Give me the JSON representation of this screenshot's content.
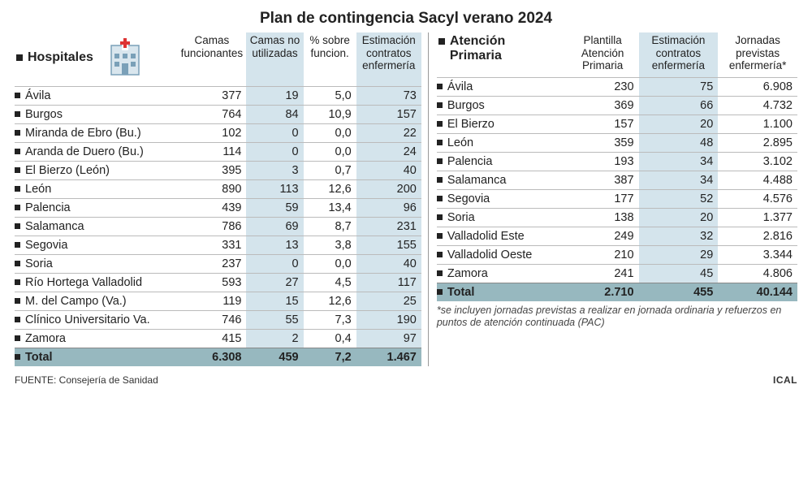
{
  "title": "Plan de contingencia Sacyl verano 2024",
  "hospitals": {
    "section_label": "Hospitales",
    "columns": [
      "Camas funcionantes",
      "Camas no utilizadas",
      "% sobre funcion.",
      "Estimación contratos enfermería"
    ],
    "rows": [
      {
        "name": "Ávila",
        "c1": "377",
        "c2": "19",
        "c3": "5,0",
        "c4": "73"
      },
      {
        "name": "Burgos",
        "c1": "764",
        "c2": "84",
        "c3": "10,9",
        "c4": "157"
      },
      {
        "name": "Miranda de Ebro (Bu.)",
        "c1": "102",
        "c2": "0",
        "c3": "0,0",
        "c4": "22"
      },
      {
        "name": "Aranda de Duero (Bu.)",
        "c1": "114",
        "c2": "0",
        "c3": "0,0",
        "c4": "24"
      },
      {
        "name": "El Bierzo (León)",
        "c1": "395",
        "c2": "3",
        "c3": "0,7",
        "c4": "40"
      },
      {
        "name": "León",
        "c1": "890",
        "c2": "113",
        "c3": "12,6",
        "c4": "200"
      },
      {
        "name": "Palencia",
        "c1": "439",
        "c2": "59",
        "c3": "13,4",
        "c4": "96"
      },
      {
        "name": "Salamanca",
        "c1": "786",
        "c2": "69",
        "c3": "8,7",
        "c4": "231"
      },
      {
        "name": "Segovia",
        "c1": "331",
        "c2": "13",
        "c3": "3,8",
        "c4": "155"
      },
      {
        "name": "Soria",
        "c1": "237",
        "c2": "0",
        "c3": "0,0",
        "c4": "40"
      },
      {
        "name": "Río Hortega Valladolid",
        "c1": "593",
        "c2": "27",
        "c3": "4,5",
        "c4": "117"
      },
      {
        "name": "M. del Campo (Va.)",
        "c1": "119",
        "c2": "15",
        "c3": "12,6",
        "c4": "25"
      },
      {
        "name": "Clínico Universitario Va.",
        "c1": "746",
        "c2": "55",
        "c3": "7,3",
        "c4": "190"
      },
      {
        "name": "Zamora",
        "c1": "415",
        "c2": "2",
        "c3": "0,4",
        "c4": "97"
      }
    ],
    "total": {
      "name": "Total",
      "c1": "6.308",
      "c2": "459",
      "c3": "7,2",
      "c4": "1.467"
    },
    "shaded_cols": [
      2,
      4
    ]
  },
  "primary": {
    "section_label": "Atención Primaria",
    "columns": [
      "Plantilla Atención Primaria",
      "Estimación contratos enfermería",
      "Jornadas previstas enfermería*"
    ],
    "rows": [
      {
        "name": "Ávila",
        "c1": "230",
        "c2": "75",
        "c3": "6.908"
      },
      {
        "name": "Burgos",
        "c1": "369",
        "c2": "66",
        "c3": "4.732"
      },
      {
        "name": "El Bierzo",
        "c1": "157",
        "c2": "20",
        "c3": "1.100"
      },
      {
        "name": "León",
        "c1": "359",
        "c2": "48",
        "c3": "2.895"
      },
      {
        "name": "Palencia",
        "c1": "193",
        "c2": "34",
        "c3": "3.102"
      },
      {
        "name": "Salamanca",
        "c1": "387",
        "c2": "34",
        "c3": "4.488"
      },
      {
        "name": "Segovia",
        "c1": "177",
        "c2": "52",
        "c3": "4.576"
      },
      {
        "name": "Soria",
        "c1": "138",
        "c2": "20",
        "c3": "1.377"
      },
      {
        "name": "Valladolid Este",
        "c1": "249",
        "c2": "32",
        "c3": "2.816"
      },
      {
        "name": "Valladolid Oeste",
        "c1": "210",
        "c2": "29",
        "c3": "3.344"
      },
      {
        "name": "Zamora",
        "c1": "241",
        "c2": "45",
        "c3": "4.806"
      }
    ],
    "total": {
      "name": "Total",
      "c1": "2.710",
      "c2": "455",
      "c3": "40.144"
    },
    "shaded_cols": [
      2
    ],
    "footnote": "*se incluyen jornadas previstas a realizar en jornada ordinaria y refuerzos en puntos de atención continuada (PAC)"
  },
  "source_label": "FUENTE: Consejería de Sanidad",
  "agency": "ICAL",
  "colors": {
    "shade": "#d4e4ec",
    "total_bg": "#97b8bf",
    "rule": "#bbbbbb"
  }
}
